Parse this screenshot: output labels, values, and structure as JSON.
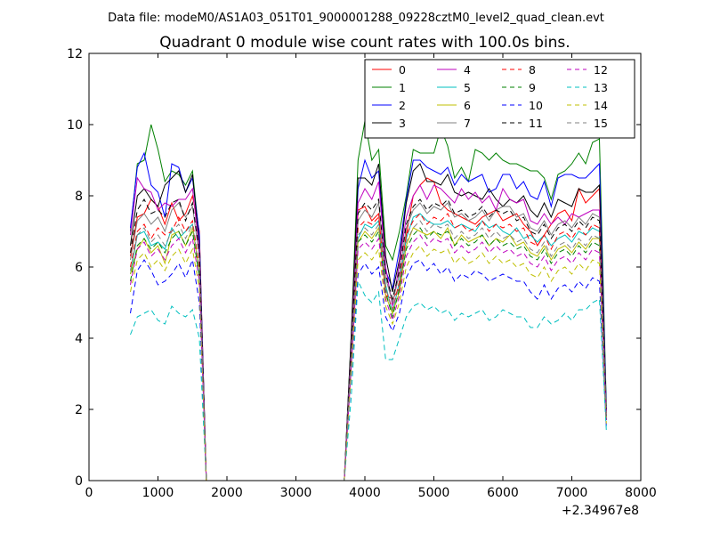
{
  "chart_data": {
    "type": "line",
    "suptitle": "Data file: modeM0/AS1A03_051T01_9000001288_09228cztM0_level2_quad_clean.evt",
    "title": "Quadrant 0 module wise count rates with 100.0s bins.",
    "xlabel": "",
    "ylabel": "",
    "x_offset_label": "+2.34967e8",
    "xlim": [
      0,
      8000
    ],
    "ylim": [
      0,
      12
    ],
    "xticks": [
      "0",
      "1000",
      "2000",
      "3000",
      "4000",
      "5000",
      "6000",
      "7000",
      "8000"
    ],
    "yticks": [
      "0",
      "2",
      "4",
      "6",
      "8",
      "10",
      "12"
    ],
    "grid": false,
    "legend_position": "top-right",
    "legend_columns": 4,
    "x": [
      600,
      700,
      800,
      900,
      1000,
      1100,
      1200,
      1300,
      1400,
      1500,
      1600,
      1700,
      1800,
      2000,
      2500,
      3000,
      3500,
      3700,
      3800,
      3900,
      4000,
      4100,
      4200,
      4300,
      4400,
      4500,
      4600,
      4700,
      4800,
      4900,
      5000,
      5100,
      5200,
      5300,
      5400,
      5500,
      5600,
      5700,
      5800,
      5900,
      6000,
      6100,
      6200,
      6300,
      6400,
      6500,
      6600,
      6700,
      6800,
      6900,
      7000,
      7100,
      7200,
      7300,
      7400,
      7500
    ],
    "series": [
      {
        "name": "0",
        "color": "#ff0000",
        "dash": "solid",
        "values": [
          6.3,
          7.4,
          7.5,
          7.9,
          7.7,
          7.2,
          7.8,
          7.3,
          7.5,
          8.0,
          7.0,
          0,
          0,
          0,
          0,
          0,
          0,
          0,
          3.5,
          7.6,
          7.7,
          7.3,
          7.5,
          5.2,
          5.1,
          5.4,
          6.9,
          8.0,
          8.3,
          8.5,
          8.4,
          7.8,
          7.6,
          7.5,
          7.4,
          7.3,
          7.2,
          7.4,
          7.5,
          7.6,
          7.3,
          7.4,
          7.5,
          7.2,
          7.0,
          6.6,
          6.9,
          7.2,
          7.5,
          7.6,
          7.3,
          8.2,
          7.8,
          8.0,
          8.2,
          2.0
        ]
      },
      {
        "name": "1",
        "color": "#008000",
        "dash": "solid",
        "values": [
          7.0,
          8.9,
          9.0,
          10.0,
          9.3,
          8.4,
          8.7,
          8.6,
          8.3,
          8.7,
          6.8,
          0,
          0,
          0,
          0,
          0,
          0,
          0,
          4.0,
          9.0,
          10.1,
          9.0,
          9.3,
          6.6,
          6.2,
          7.0,
          8.0,
          9.3,
          9.2,
          9.2,
          9.2,
          9.9,
          9.4,
          8.5,
          8.8,
          8.4,
          9.3,
          9.2,
          9.0,
          9.2,
          9.0,
          8.9,
          8.9,
          8.8,
          8.7,
          8.7,
          8.5,
          7.9,
          8.6,
          8.7,
          8.9,
          9.2,
          8.9,
          9.5,
          9.6,
          2.1
        ]
      },
      {
        "name": "2",
        "color": "#0000ff",
        "dash": "solid",
        "values": [
          7.1,
          8.8,
          9.2,
          8.3,
          8.1,
          7.4,
          8.9,
          8.8,
          8.1,
          8.5,
          6.9,
          0,
          0,
          0,
          0,
          0,
          0,
          0,
          3.8,
          8.2,
          9.0,
          8.5,
          8.7,
          5.9,
          5.4,
          6.5,
          7.9,
          9.0,
          9.0,
          8.8,
          8.7,
          8.6,
          8.8,
          8.3,
          8.6,
          8.4,
          8.5,
          8.6,
          8.1,
          8.2,
          8.6,
          8.6,
          8.2,
          8.4,
          8.0,
          7.9,
          8.4,
          7.7,
          8.5,
          8.6,
          8.6,
          8.5,
          8.5,
          8.7,
          8.9,
          2.0
        ]
      },
      {
        "name": "3",
        "color": "#000000",
        "dash": "solid",
        "values": [
          6.6,
          8.0,
          8.2,
          7.9,
          7.7,
          8.3,
          8.5,
          8.7,
          8.1,
          8.6,
          6.6,
          0,
          0,
          0,
          0,
          0,
          0,
          0,
          4.0,
          8.5,
          8.5,
          8.3,
          8.9,
          6.3,
          5.3,
          6.2,
          7.8,
          8.7,
          8.9,
          8.4,
          8.4,
          8.3,
          8.6,
          8.1,
          8.0,
          8.1,
          8.0,
          7.9,
          8.2,
          7.9,
          7.7,
          7.9,
          7.8,
          8.0,
          7.6,
          7.4,
          7.8,
          7.4,
          7.9,
          7.8,
          7.7,
          8.2,
          8.1,
          8.1,
          8.3,
          1.9
        ]
      },
      {
        "name": "4",
        "color": "#bf00bf",
        "dash": "solid",
        "values": [
          6.9,
          8.5,
          8.2,
          8.1,
          7.6,
          7.8,
          7.7,
          7.9,
          7.9,
          8.2,
          6.5,
          0,
          0,
          0,
          0,
          0,
          0,
          0,
          3.7,
          7.8,
          8.2,
          7.9,
          8.4,
          6.0,
          4.9,
          6.1,
          7.4,
          8.0,
          8.3,
          7.9,
          8.3,
          8.2,
          8.0,
          7.8,
          8.2,
          7.9,
          8.1,
          7.8,
          8.0,
          7.6,
          8.2,
          7.9,
          7.8,
          7.9,
          7.3,
          7.2,
          7.5,
          7.2,
          7.4,
          7.2,
          7.5,
          7.4,
          7.5,
          7.6,
          7.6,
          1.8
        ]
      },
      {
        "name": "5",
        "color": "#00bfbf",
        "dash": "solid",
        "values": [
          5.8,
          6.9,
          7.0,
          6.6,
          6.7,
          6.5,
          7.1,
          6.8,
          7.0,
          7.2,
          5.8,
          0,
          0,
          0,
          0,
          0,
          0,
          0,
          3.3,
          6.8,
          7.2,
          7.1,
          7.3,
          5.5,
          4.7,
          5.6,
          6.8,
          7.4,
          7.5,
          7.3,
          7.2,
          7.2,
          7.3,
          7.1,
          7.2,
          7.1,
          7.0,
          7.3,
          7.1,
          7.2,
          7.0,
          6.9,
          7.1,
          6.8,
          6.9,
          6.7,
          6.9,
          6.6,
          6.8,
          6.9,
          6.7,
          7.0,
          6.9,
          7.1,
          7.0,
          1.7
        ]
      },
      {
        "name": "6",
        "color": "#bfbf00",
        "dash": "solid",
        "values": [
          5.8,
          6.5,
          6.8,
          6.4,
          6.6,
          6.1,
          6.9,
          7.0,
          6.6,
          7.1,
          5.9,
          0,
          0,
          0,
          0,
          0,
          0,
          0,
          3.2,
          6.7,
          7.0,
          6.8,
          7.1,
          5.2,
          4.7,
          5.3,
          6.6,
          7.1,
          7.0,
          6.9,
          7.0,
          6.8,
          7.1,
          6.6,
          6.9,
          6.7,
          6.8,
          6.9,
          6.6,
          6.8,
          6.7,
          6.9,
          6.6,
          6.7,
          6.4,
          6.3,
          6.6,
          6.2,
          6.5,
          6.6,
          6.4,
          6.7,
          6.5,
          6.8,
          6.8,
          1.7
        ]
      },
      {
        "name": "7",
        "color": "#808080",
        "dash": "solid",
        "values": [
          6.2,
          7.3,
          7.5,
          7.2,
          7.4,
          7.0,
          7.6,
          7.8,
          7.4,
          7.7,
          6.3,
          0,
          0,
          0,
          0,
          0,
          0,
          0,
          3.5,
          7.3,
          7.6,
          7.4,
          7.8,
          5.7,
          5.0,
          5.8,
          7.1,
          7.6,
          7.8,
          7.5,
          7.7,
          7.6,
          7.8,
          7.4,
          7.5,
          7.3,
          7.4,
          7.6,
          7.3,
          7.6,
          7.7,
          7.7,
          7.4,
          7.5,
          7.1,
          7.0,
          7.3,
          6.9,
          7.2,
          7.3,
          7.1,
          7.4,
          7.2,
          7.5,
          7.4,
          1.8
        ]
      },
      {
        "name": "8",
        "color": "#ff0000",
        "dash": "dashed",
        "values": [
          6.0,
          7.0,
          7.2,
          6.8,
          7.1,
          6.9,
          7.0,
          7.4,
          7.0,
          7.3,
          6.0,
          0,
          0,
          0,
          0,
          0,
          0,
          0,
          3.4,
          7.1,
          7.3,
          7.2,
          7.4,
          5.4,
          4.8,
          5.6,
          6.9,
          7.3,
          7.5,
          7.2,
          7.4,
          7.3,
          7.5,
          7.1,
          7.2,
          7.0,
          7.1,
          7.3,
          7.0,
          7.2,
          7.1,
          7.2,
          7.0,
          7.1,
          6.7,
          6.6,
          6.9,
          6.5,
          6.9,
          7.0,
          6.8,
          7.1,
          6.9,
          7.2,
          7.1,
          1.8
        ]
      },
      {
        "name": "9",
        "color": "#008000",
        "dash": "dashed",
        "values": [
          5.6,
          6.6,
          6.8,
          6.5,
          6.7,
          6.4,
          6.8,
          7.0,
          6.6,
          7.0,
          5.7,
          0,
          0,
          0,
          0,
          0,
          0,
          0,
          3.2,
          6.7,
          6.9,
          6.7,
          7.0,
          5.3,
          4.6,
          5.4,
          6.5,
          6.9,
          7.1,
          6.8,
          7.0,
          6.9,
          7.0,
          6.6,
          6.8,
          6.6,
          6.7,
          6.9,
          6.6,
          6.8,
          6.6,
          6.7,
          6.5,
          6.6,
          6.3,
          6.2,
          6.5,
          6.1,
          6.4,
          6.5,
          6.3,
          6.6,
          6.4,
          6.7,
          6.6,
          1.7
        ]
      },
      {
        "name": "10",
        "color": "#0000ff",
        "dash": "dashed",
        "values": [
          4.7,
          5.9,
          6.2,
          5.9,
          5.5,
          5.6,
          5.8,
          6.1,
          5.7,
          6.2,
          5.0,
          0,
          0,
          0,
          0,
          0,
          0,
          0,
          2.9,
          5.8,
          6.1,
          5.8,
          6.0,
          4.6,
          4.2,
          4.7,
          5.7,
          6.1,
          6.2,
          5.9,
          6.1,
          5.8,
          6.0,
          5.6,
          5.8,
          5.7,
          5.9,
          5.8,
          5.6,
          5.7,
          5.8,
          5.7,
          5.6,
          5.6,
          5.3,
          5.1,
          5.5,
          5.1,
          5.4,
          5.5,
          5.3,
          5.6,
          5.4,
          5.7,
          5.6,
          1.5
        ]
      },
      {
        "name": "11",
        "color": "#000000",
        "dash": "dashed",
        "values": [
          6.4,
          7.6,
          7.9,
          7.5,
          7.6,
          7.4,
          7.8,
          7.9,
          7.3,
          7.8,
          6.4,
          0,
          0,
          0,
          0,
          0,
          0,
          0,
          3.6,
          7.5,
          7.8,
          7.6,
          7.9,
          5.8,
          5.1,
          5.9,
          7.2,
          7.7,
          7.9,
          7.6,
          7.8,
          7.7,
          7.9,
          7.5,
          7.6,
          7.4,
          7.5,
          7.7,
          7.4,
          7.6,
          7.5,
          7.6,
          7.3,
          7.4,
          7.0,
          6.9,
          7.2,
          6.8,
          7.1,
          7.2,
          7.0,
          7.3,
          7.1,
          7.4,
          7.3,
          1.8
        ]
      },
      {
        "name": "12",
        "color": "#bf00bf",
        "dash": "dashed",
        "values": [
          5.5,
          6.5,
          6.7,
          6.3,
          6.5,
          6.2,
          6.6,
          6.8,
          6.4,
          6.8,
          5.6,
          0,
          0,
          0,
          0,
          0,
          0,
          0,
          3.1,
          6.5,
          6.7,
          6.5,
          6.8,
          5.1,
          4.5,
          5.2,
          6.3,
          6.7,
          6.9,
          6.6,
          6.8,
          6.7,
          6.8,
          6.4,
          6.6,
          6.4,
          6.5,
          6.7,
          6.4,
          6.6,
          6.4,
          6.5,
          6.3,
          6.4,
          6.1,
          6.0,
          6.3,
          5.9,
          6.2,
          6.3,
          6.1,
          6.4,
          6.2,
          6.5,
          6.4,
          1.7
        ]
      },
      {
        "name": "13",
        "color": "#00bfbf",
        "dash": "dashed",
        "values": [
          4.1,
          4.6,
          4.7,
          4.8,
          4.5,
          4.4,
          4.9,
          4.7,
          4.6,
          4.8,
          4.0,
          0,
          0,
          0,
          0,
          0,
          0,
          0,
          2.3,
          5.6,
          5.2,
          5.0,
          5.3,
          3.4,
          3.4,
          4.0,
          4.6,
          4.9,
          5.0,
          4.8,
          4.9,
          4.7,
          4.8,
          4.5,
          4.7,
          4.6,
          4.7,
          4.8,
          4.5,
          4.6,
          4.8,
          4.7,
          4.6,
          4.6,
          4.3,
          4.3,
          4.6,
          4.4,
          4.5,
          4.7,
          4.5,
          4.8,
          4.8,
          5.0,
          5.1,
          1.4
        ]
      },
      {
        "name": "14",
        "color": "#bfbf00",
        "dash": "dashed",
        "values": [
          5.3,
          6.2,
          6.4,
          6.0,
          6.2,
          5.9,
          6.3,
          6.5,
          6.1,
          6.5,
          5.4,
          0,
          0,
          0,
          0,
          0,
          0,
          0,
          3.0,
          6.2,
          6.4,
          6.2,
          6.5,
          4.9,
          4.4,
          5.0,
          6.0,
          6.4,
          6.6,
          6.3,
          6.5,
          6.4,
          6.5,
          6.1,
          6.3,
          6.1,
          6.2,
          6.4,
          6.1,
          6.3,
          6.1,
          6.2,
          6.0,
          6.1,
          5.8,
          5.7,
          6.0,
          5.6,
          5.9,
          6.0,
          5.8,
          6.1,
          5.9,
          6.2,
          6.1,
          1.6
        ]
      },
      {
        "name": "15",
        "color": "#808080",
        "dash": "dashed",
        "values": [
          5.9,
          6.9,
          7.1,
          6.7,
          6.9,
          6.6,
          7.0,
          7.2,
          6.8,
          7.2,
          5.9,
          0,
          0,
          0,
          0,
          0,
          0,
          0,
          3.3,
          6.9,
          7.1,
          6.9,
          7.2,
          5.4,
          4.8,
          5.5,
          6.7,
          7.1,
          7.3,
          7.0,
          7.2,
          7.1,
          7.2,
          6.8,
          7.0,
          6.8,
          6.9,
          7.1,
          6.8,
          7.0,
          6.8,
          6.9,
          6.7,
          6.8,
          6.5,
          6.4,
          6.7,
          6.3,
          6.6,
          6.7,
          6.5,
          6.8,
          6.6,
          6.9,
          6.8,
          1.8
        ]
      }
    ]
  }
}
